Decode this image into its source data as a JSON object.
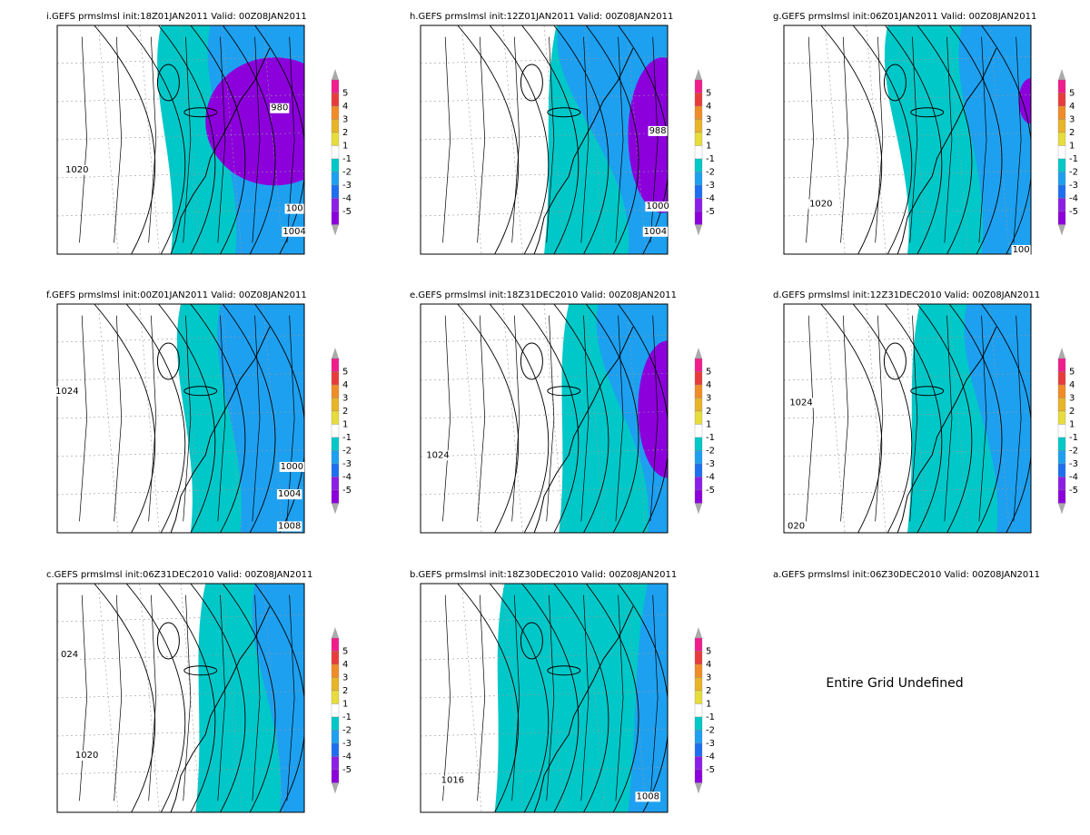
{
  "panels": [
    {
      "title": "i.GEFS prmslmsl init:18Z01JAN2011  Valid: 00Z08JAN2011",
      "contour_labels": [
        "980",
        "1020",
        "100",
        "1004"
      ]
    },
    {
      "title": "h.GEFS prmslmsl init:12Z01JAN2011  Valid: 00Z08JAN2011",
      "contour_labels": [
        "988",
        "1000",
        "1004"
      ]
    },
    {
      "title": "g.GEFS prmslmsl init:06Z01JAN2011  Valid: 00Z08JAN2011",
      "contour_labels": [
        "1020",
        "100"
      ]
    },
    {
      "title": "f.GEFS prmslmsl init:00Z01JAN2011  Valid: 00Z08JAN2011",
      "contour_labels": [
        "1024",
        "1000",
        "1004",
        "1008"
      ]
    },
    {
      "title": "e.GEFS prmslmsl init:18Z31DEC2010  Valid: 00Z08JAN2011",
      "contour_labels": [
        "1024"
      ]
    },
    {
      "title": "d.GEFS prmslmsl init:12Z31DEC2010  Valid: 00Z08JAN2011",
      "contour_labels": [
        "1024",
        "020"
      ]
    },
    {
      "title": "c.GEFS prmslmsl init:06Z31DEC2010  Valid: 00Z08JAN2011",
      "contour_labels": [
        "024",
        "1020"
      ]
    },
    {
      "title": "b.GEFS prmslmsl init:18Z30DEC2010  Valid: 00Z08JAN2011",
      "contour_labels": [
        "1016",
        "1008"
      ]
    },
    {
      "title": "a.GEFS prmslmsl init:06Z30DEC2010  Valid: 00Z08JAN2011",
      "message": "Entire Grid Undefined"
    }
  ],
  "colorbar": {
    "levels": [
      5,
      4,
      3,
      2,
      1,
      -1,
      -2,
      -3,
      -4,
      -5
    ],
    "colors": [
      "#f01e8c",
      "#e83c3c",
      "#f08c28",
      "#e8b428",
      "#e8dc3c",
      "#ffffff",
      "#00c8c8",
      "#1ea0f0",
      "#1e6ef0",
      "#8c1ee6",
      "#8c00dc"
    ]
  }
}
